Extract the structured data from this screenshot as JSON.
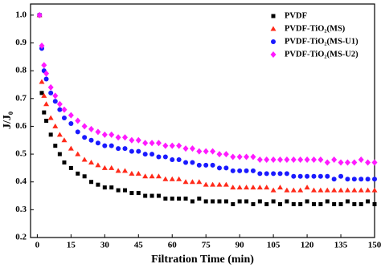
{
  "chart_data": {
    "type": "scatter",
    "x_label": "Filtration Time (min)",
    "y_label": "J/J₀",
    "x": [
      1,
      2,
      3,
      4,
      6,
      8,
      10,
      12,
      15,
      18,
      21,
      24,
      27,
      30,
      33,
      36,
      39,
      42,
      45,
      48,
      51,
      54,
      57,
      60,
      63,
      66,
      69,
      72,
      75,
      78,
      81,
      84,
      87,
      90,
      93,
      96,
      99,
      102,
      105,
      108,
      111,
      114,
      117,
      120,
      123,
      126,
      129,
      132,
      135,
      138,
      141,
      144,
      147,
      150
    ],
    "series": [
      {
        "name": "PVDF",
        "color": "#000000",
        "marker": "square",
        "values": [
          1.0,
          0.72,
          0.65,
          0.62,
          0.57,
          0.53,
          0.5,
          0.47,
          0.45,
          0.43,
          0.42,
          0.4,
          0.39,
          0.38,
          0.38,
          0.37,
          0.37,
          0.36,
          0.36,
          0.35,
          0.35,
          0.35,
          0.34,
          0.34,
          0.34,
          0.34,
          0.33,
          0.34,
          0.33,
          0.33,
          0.33,
          0.33,
          0.32,
          0.33,
          0.33,
          0.32,
          0.33,
          0.32,
          0.33,
          0.32,
          0.33,
          0.32,
          0.32,
          0.33,
          0.32,
          0.32,
          0.33,
          0.32,
          0.32,
          0.33,
          0.32,
          0.32,
          0.33,
          0.32
        ]
      },
      {
        "name": "PVDF-TiO₂(MS)",
        "color": "#ff2a1a",
        "marker": "triangle",
        "values": [
          1.0,
          0.76,
          0.71,
          0.68,
          0.63,
          0.6,
          0.57,
          0.55,
          0.52,
          0.5,
          0.48,
          0.47,
          0.46,
          0.45,
          0.45,
          0.44,
          0.44,
          0.43,
          0.43,
          0.42,
          0.42,
          0.42,
          0.41,
          0.41,
          0.41,
          0.4,
          0.4,
          0.4,
          0.39,
          0.39,
          0.39,
          0.39,
          0.38,
          0.38,
          0.38,
          0.38,
          0.38,
          0.38,
          0.37,
          0.38,
          0.37,
          0.37,
          0.37,
          0.38,
          0.37,
          0.37,
          0.37,
          0.37,
          0.37,
          0.37,
          0.37,
          0.37,
          0.37,
          0.37
        ]
      },
      {
        "name": "PVDF-TiO₂(MS-U1)",
        "color": "#1a1aff",
        "marker": "circle",
        "values": [
          1.0,
          0.88,
          0.8,
          0.77,
          0.72,
          0.69,
          0.66,
          0.63,
          0.61,
          0.58,
          0.56,
          0.55,
          0.54,
          0.53,
          0.53,
          0.52,
          0.52,
          0.51,
          0.51,
          0.5,
          0.5,
          0.49,
          0.49,
          0.48,
          0.48,
          0.47,
          0.47,
          0.46,
          0.46,
          0.46,
          0.45,
          0.45,
          0.44,
          0.44,
          0.44,
          0.44,
          0.43,
          0.43,
          0.43,
          0.43,
          0.43,
          0.42,
          0.42,
          0.42,
          0.42,
          0.42,
          0.42,
          0.41,
          0.42,
          0.41,
          0.41,
          0.41,
          0.41,
          0.41
        ]
      },
      {
        "name": "PVDF-TiO₂(MS-U2)",
        "color": "#ff1aff",
        "marker": "diamond",
        "values": [
          1.0,
          0.89,
          0.82,
          0.79,
          0.74,
          0.71,
          0.68,
          0.66,
          0.64,
          0.62,
          0.6,
          0.59,
          0.58,
          0.57,
          0.57,
          0.56,
          0.56,
          0.55,
          0.55,
          0.54,
          0.54,
          0.54,
          0.53,
          0.53,
          0.53,
          0.52,
          0.52,
          0.51,
          0.51,
          0.51,
          0.5,
          0.5,
          0.49,
          0.49,
          0.49,
          0.49,
          0.48,
          0.48,
          0.48,
          0.48,
          0.48,
          0.48,
          0.48,
          0.48,
          0.48,
          0.48,
          0.47,
          0.48,
          0.47,
          0.47,
          0.47,
          0.48,
          0.47,
          0.47
        ]
      }
    ],
    "xlim": [
      -3,
      150
    ],
    "xticks": [
      0,
      15,
      30,
      45,
      60,
      75,
      90,
      105,
      120,
      135,
      150
    ],
    "ylim": [
      0.2,
      1.04
    ],
    "yticks": [
      0.2,
      0.3,
      0.4,
      0.5,
      0.6,
      0.7,
      0.8,
      0.9,
      {
        "value": 1,
        "label": "1.0"
      }
    ],
    "legend": "upper right",
    "grid": false
  }
}
